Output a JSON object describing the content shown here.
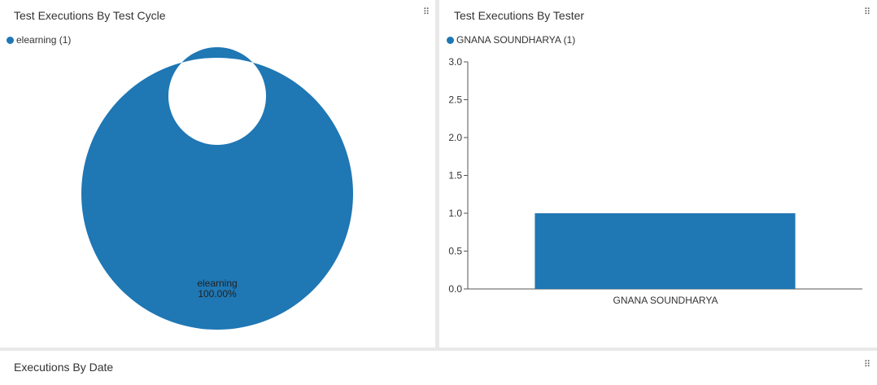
{
  "colors": {
    "series": "#1f77b4",
    "axis": "#555555",
    "text": "#333333"
  },
  "panels": {
    "cycle": {
      "title": "Test Executions By Test Cycle",
      "handle_icon": "drag-grip-icon",
      "legend": {
        "label": "elearning (1)"
      },
      "slice_label": "elearning",
      "slice_percent": "100.00%"
    },
    "tester": {
      "title": "Test Executions By Tester",
      "handle_icon": "drag-grip-icon",
      "legend": {
        "label": "GNANA SOUNDHARYA (1)"
      },
      "y_ticks": [
        "0.0",
        "0.5",
        "1.0",
        "1.5",
        "2.0",
        "2.5",
        "3.0"
      ],
      "x_tick": "GNANA SOUNDHARYA"
    },
    "date": {
      "title": "Executions By Date",
      "handle_icon": "drag-grip-icon"
    }
  },
  "chart_data": [
    {
      "type": "pie",
      "title": "Test Executions By Test Cycle",
      "donut": true,
      "categories": [
        "elearning"
      ],
      "values": [
        1
      ],
      "percent_labels": [
        "100.00%"
      ],
      "legend": [
        "elearning (1)"
      ],
      "legend_position": "top-left"
    },
    {
      "type": "bar",
      "title": "Test Executions By Tester",
      "categories": [
        "GNANA SOUNDHARYA"
      ],
      "values": [
        1
      ],
      "ylim": [
        0,
        3
      ],
      "yticks": [
        0,
        0.5,
        1,
        1.5,
        2,
        2.5,
        3
      ],
      "legend": [
        "GNANA SOUNDHARYA (1)"
      ],
      "legend_position": "top-left",
      "grid": false
    }
  ]
}
